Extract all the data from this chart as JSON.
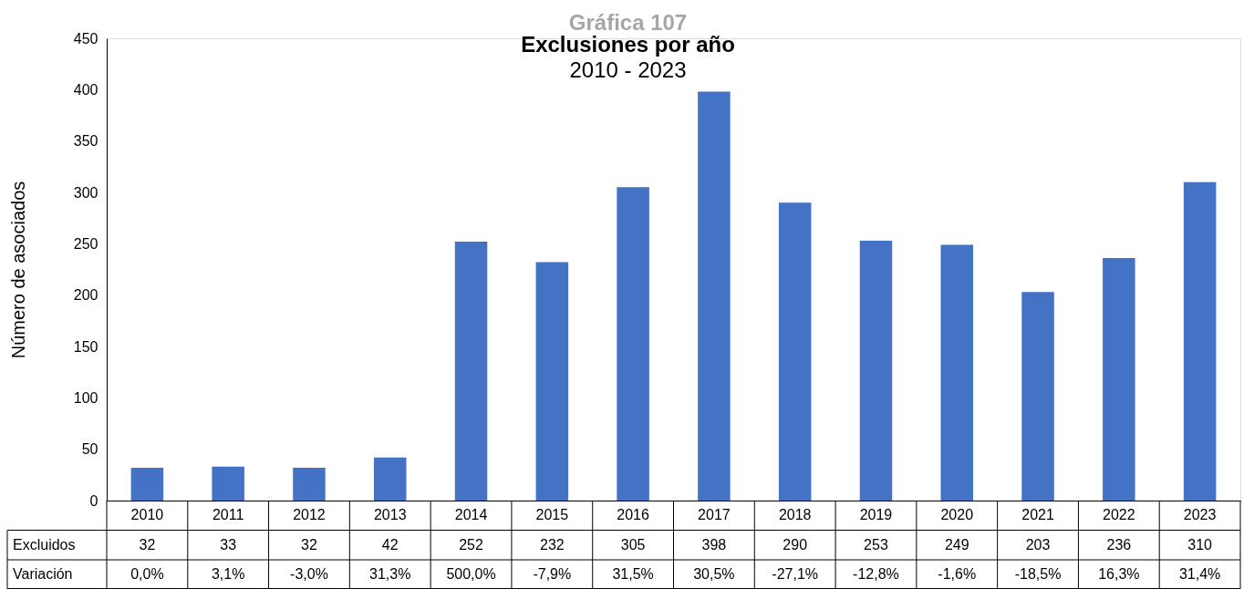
{
  "chart_data": {
    "type": "bar",
    "title": "Exclusiones por año",
    "subtitle": "2010 - 2023",
    "ylabel": "Número de asociados",
    "categories": [
      "2010",
      "2011",
      "2012",
      "2013",
      "2014",
      "2015",
      "2016",
      "2017",
      "2018",
      "2019",
      "2020",
      "2021",
      "2022",
      "2023"
    ],
    "series": [
      {
        "name": "Excluidos",
        "color": "#4472c4",
        "values": [
          32,
          33,
          32,
          42,
          252,
          232,
          305,
          398,
          290,
          253,
          249,
          203,
          236,
          310
        ]
      }
    ],
    "ylim": [
      0,
      450
    ],
    "yticks": [
      0,
      50,
      100,
      150,
      200,
      250,
      300,
      350,
      400,
      450
    ],
    "grid": false,
    "data_labels": true,
    "annotations": [
      "Gráfica 107",
      "Variación",
      "0,0%",
      "3,1%",
      "-3,0%",
      "31,3%",
      "500,0%",
      "-7,9%",
      "31,5%",
      "30,5%",
      "-27,1%",
      "-12,8%",
      "-1,6%",
      "-18,5%",
      "16,3%",
      "31,4%"
    ]
  }
}
